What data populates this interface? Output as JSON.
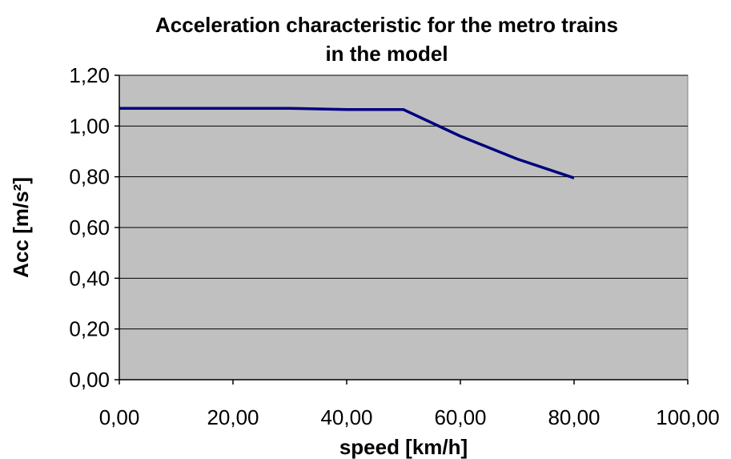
{
  "chart_data": {
    "type": "line",
    "title_lines": [
      "Acceleration characteristic for the metro trains",
      "in the model"
    ],
    "xlabel": "speed [km/h]",
    "ylabel": "Acc [m/s²]",
    "xlim": [
      0,
      100
    ],
    "ylim": [
      0,
      1.2
    ],
    "x_ticks": [
      0,
      20,
      40,
      60,
      80,
      100
    ],
    "x_tick_labels": [
      "0,00",
      "20,00",
      "40,00",
      "60,00",
      "80,00",
      "100,00"
    ],
    "y_ticks": [
      0,
      0.2,
      0.4,
      0.6,
      0.8,
      1.0,
      1.2
    ],
    "y_tick_labels": [
      "0,00",
      "0,20",
      "0,40",
      "0,60",
      "0,80",
      "1,00",
      "1,20"
    ],
    "grid": "horizontal",
    "legend": "none",
    "series": [
      {
        "x": [
          0,
          10,
          20,
          30,
          40,
          50,
          60,
          70,
          80
        ],
        "y": [
          1.07,
          1.07,
          1.07,
          1.07,
          1.065,
          1.065,
          0.96,
          0.87,
          0.795
        ],
        "color": "#000080"
      }
    ],
    "colors": {
      "plot_background": "#c0c0c0",
      "grid": "#000000",
      "line": "#000080"
    }
  }
}
